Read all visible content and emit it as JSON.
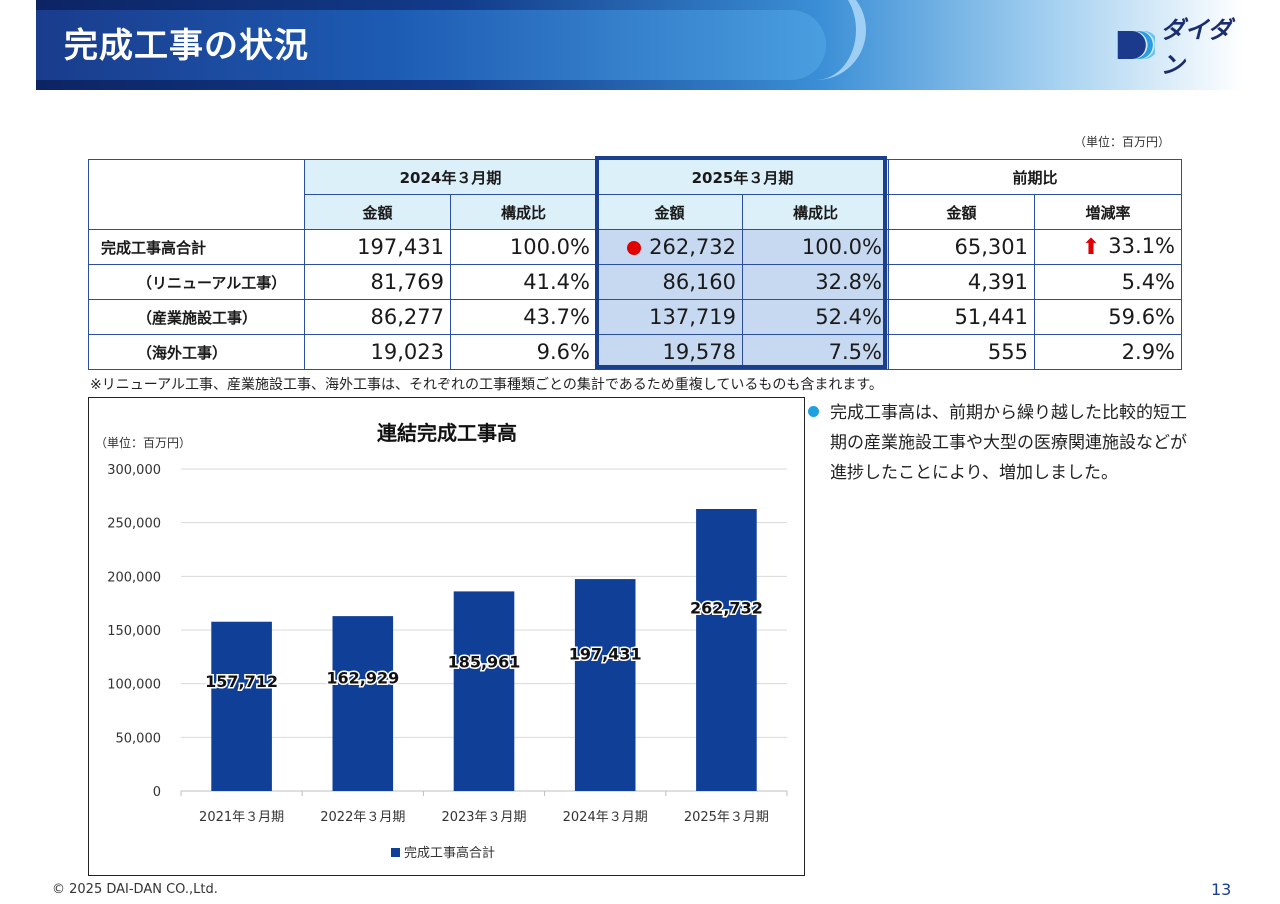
{
  "header": {
    "title": "完成工事の状況",
    "logo_text": "ダイダン"
  },
  "table": {
    "unit": "（単位：百万円）",
    "periods": [
      "2024年３月期",
      "2025年３月期",
      "前期比"
    ],
    "subheaders": [
      "金額",
      "構成比",
      "金額",
      "構成比",
      "金額",
      "増減率"
    ],
    "rows": [
      {
        "label": "完成工事高合計",
        "values": [
          "197,431",
          "100.0%",
          "262,732",
          "100.0%",
          "65,301",
          "33.1%"
        ]
      },
      {
        "label": "（リニューアル工事）",
        "values": [
          "81,769",
          "41.4%",
          "86,160",
          "32.8%",
          "4,391",
          "5.4%"
        ]
      },
      {
        "label": "（産業施設工事）",
        "values": [
          "86,277",
          "43.7%",
          "137,719",
          "52.4%",
          "51,441",
          "59.6%"
        ]
      },
      {
        "label": "（海外工事）",
        "values": [
          "19,023",
          "9.6%",
          "19,578",
          "7.5%",
          "555",
          "2.9%"
        ]
      }
    ],
    "note": "※リニューアル工事、産業施設工事、海外工事は、それぞれの工事種類ごとの集計であるため重複しているものも含まれます。",
    "colors": {
      "header_fill": "#dcf0fa",
      "highlight_fill": "#c7d9f1",
      "border": "#2b4f9e",
      "marker": "#e00000"
    }
  },
  "chart_data": {
    "type": "bar",
    "title": "連結完成工事高",
    "unit_label": "（単位：百万円）",
    "categories": [
      "2021年３月期",
      "2022年３月期",
      "2023年３月期",
      "2024年３月期",
      "2025年３月期"
    ],
    "series": [
      {
        "name": "完成工事高合計",
        "values": [
          157712,
          162929,
          185961,
          197431,
          262732
        ],
        "color": "#0f3f96"
      }
    ],
    "data_labels": [
      "157,712",
      "162,929",
      "185,961",
      "197,431",
      "262,732"
    ],
    "y_ticks": [
      "0",
      "50,000",
      "100,000",
      "150,000",
      "200,000",
      "250,000",
      "300,000"
    ],
    "ylim": [
      0,
      300000
    ],
    "grid": true,
    "legend": "bottom"
  },
  "commentary": {
    "text": "完成工事高は、前期から繰り越した比較的短工期の産業施設工事や大型の医療関連施設などが進捗したことにより、増加しました。",
    "bullet_color": "#1fa0e0"
  },
  "footer": {
    "copyright": "© 2025 DAI-DAN CO.,Ltd.",
    "page_number": "13"
  }
}
